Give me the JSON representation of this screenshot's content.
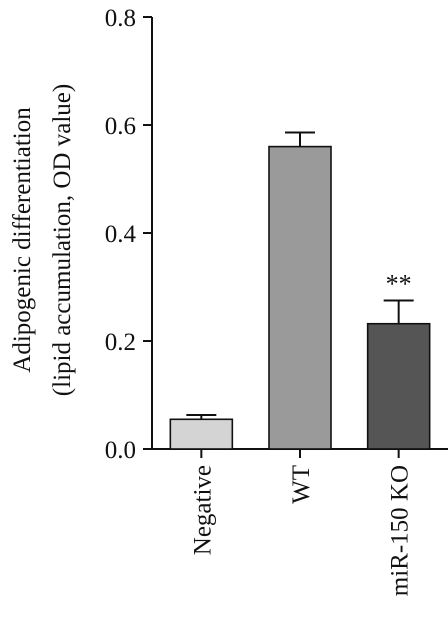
{
  "chart_data": {
    "type": "bar",
    "ylabel_line1": "Adipogenic differentiation",
    "ylabel_line2": "(lipid accumulation, OD value)",
    "ylim": [
      0,
      0.8
    ],
    "yticks": [
      "0.0",
      "0.2",
      "0.4",
      "0.6",
      "0.8"
    ],
    "categories": [
      "Negative",
      "WT",
      "miR-150 KO"
    ],
    "values": [
      0.055,
      0.56,
      0.232
    ],
    "errors": [
      0.008,
      0.026,
      0.043
    ],
    "bar_colors": [
      "#d4d4d4",
      "#9a9a9a",
      "#555555"
    ],
    "significance": [
      "",
      "",
      "**"
    ],
    "grid": false,
    "legend": "none"
  }
}
